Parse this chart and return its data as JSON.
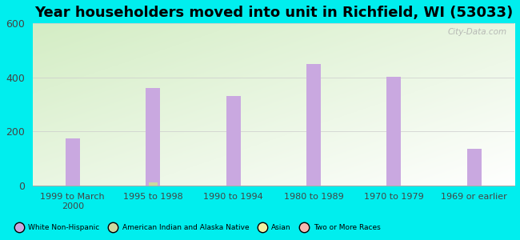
{
  "title": "Year householders moved into unit in Richfield, WI (53033)",
  "categories": [
    "1999 to March\n2000",
    "1995 to 1998",
    "1990 to 1994",
    "1980 to 1989",
    "1970 to 1979",
    "1969 or earlier"
  ],
  "white_non_hispanic": [
    175,
    362,
    330,
    450,
    402,
    135
  ],
  "american_indian": [
    0,
    12,
    0,
    0,
    0,
    0
  ],
  "asian": [
    0,
    0,
    0,
    0,
    0,
    0
  ],
  "two_or_more": [
    0,
    0,
    0,
    0,
    0,
    0
  ],
  "bar_color_white": "#c9a8e0",
  "bar_color_american_indian": "#ccd9a0",
  "bar_color_asian": "#f0f0a0",
  "bar_color_two_or_more": "#f5b8b0",
  "ylim": [
    0,
    600
  ],
  "yticks": [
    0,
    200,
    400,
    600
  ],
  "background_outer": "#00eeee",
  "grid_color": "#cccccc",
  "title_fontsize": 13,
  "watermark": "City-Data.com",
  "legend_entries": [
    "White Non-Hispanic",
    "American Indian and Alaska Native",
    "Asian",
    "Two or More Races"
  ],
  "legend_colors": [
    "#c9a8e0",
    "#ccd9a0",
    "#f0f0a0",
    "#f5b8b0"
  ]
}
